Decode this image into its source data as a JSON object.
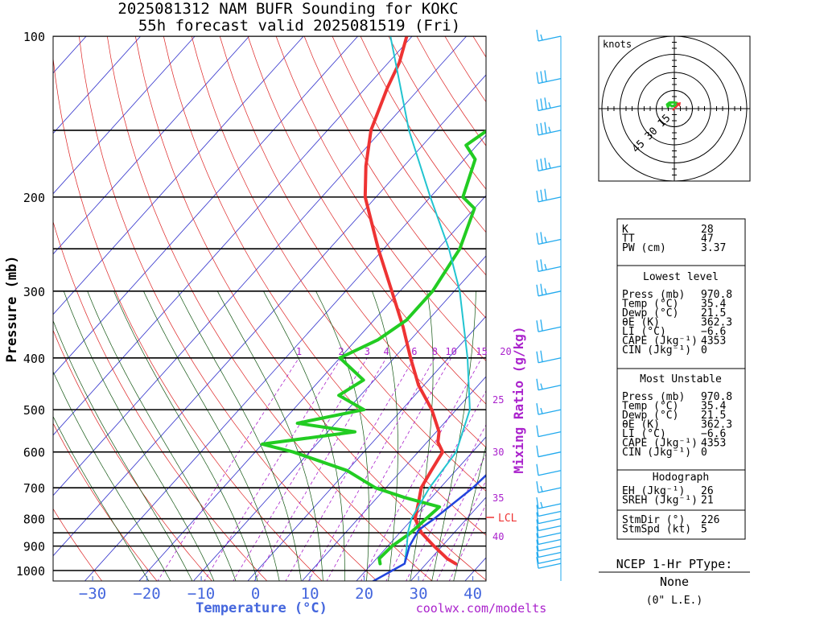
{
  "title": {
    "line1": "2025081312 NAM BUFR Sounding for KOKC",
    "line2": "55h forecast valid 2025081519 (Fri)"
  },
  "colors": {
    "temperature": "#ee3333",
    "dewpoint": "#22cc22",
    "wetbulb": "#22c4d0",
    "parcel": "#2244dd",
    "isotherm": "#3333cc",
    "dry_adiabat": "#dd2222",
    "moist_adiabat": "#115511",
    "mixing_ratio": "#aa22cc",
    "wind_barb": "#22aaee"
  },
  "axes": {
    "y_label": "Pressure (mb)",
    "x_label": "Temperature (°C)",
    "pressure_ticks": [
      "100",
      "200",
      "300",
      "400",
      "500",
      "600",
      "700",
      "800",
      "900",
      "1000"
    ],
    "temperature_ticks": [
      "−30",
      "−20",
      "−10",
      "0",
      "10",
      "20",
      "30",
      "40"
    ],
    "mixing_ratio_label": "Mixing Ratio (g/kg)",
    "mixing_ratio_top_ticks": [
      "1",
      "2",
      "3",
      "4",
      "6",
      "8",
      "10",
      "15",
      "20"
    ],
    "mixing_ratio_side_ticks": [
      "25",
      "30",
      "35",
      "40"
    ],
    "lcl_label": "LCL"
  },
  "chart_data": {
    "type": "line",
    "title": "2025081312 NAM BUFR Sounding for KOKC 55h forecast valid 2025081519 (Fri)",
    "xlabel": "Temperature (°C)",
    "ylabel": "Pressure (mb)",
    "y_scale": "log",
    "ylim": [
      1050,
      100
    ],
    "xlim": [
      -40,
      40
    ],
    "series": [
      {
        "name": "temperature",
        "points": [
          [
            970.8,
            35.4
          ],
          [
            950,
            33
          ],
          [
            900,
            28.5
          ],
          [
            850,
            24
          ],
          [
            800,
            20.5
          ],
          [
            750,
            18.6
          ],
          [
            700,
            16.5
          ],
          [
            650,
            15.5
          ],
          [
            600,
            14.5
          ],
          [
            575,
            12
          ],
          [
            550,
            10.5
          ],
          [
            500,
            5.5
          ],
          [
            450,
            -1
          ],
          [
            400,
            -7
          ],
          [
            350,
            -13.5
          ],
          [
            300,
            -21.5
          ],
          [
            250,
            -31
          ],
          [
            200,
            -42
          ],
          [
            175,
            -47
          ],
          [
            150,
            -52
          ],
          [
            125,
            -56
          ],
          [
            112,
            -58
          ],
          [
            100,
            -61
          ]
        ]
      },
      {
        "name": "dewpoint",
        "points": [
          [
            970.8,
            21.5
          ],
          [
            950,
            20.5
          ],
          [
            900,
            20.8
          ],
          [
            850,
            22
          ],
          [
            800,
            22.5
          ],
          [
            760,
            23
          ],
          [
            730,
            15
          ],
          [
            700,
            8
          ],
          [
            650,
            0
          ],
          [
            600,
            -13
          ],
          [
            580,
            -20
          ],
          [
            550,
            -5
          ],
          [
            530,
            -17
          ],
          [
            500,
            -7
          ],
          [
            470,
            -14
          ],
          [
            440,
            -12
          ],
          [
            400,
            -20
          ],
          [
            370,
            -16
          ],
          [
            340,
            -14
          ],
          [
            300,
            -14
          ],
          [
            250,
            -16
          ],
          [
            210,
            -20
          ],
          [
            200,
            -24
          ],
          [
            170,
            -28
          ],
          [
            160,
            -32
          ],
          [
            140,
            -29
          ],
          [
            120,
            -25
          ]
        ]
      },
      {
        "name": "wetbulb",
        "points": [
          [
            970.8,
            26
          ],
          [
            900,
            23.5
          ],
          [
            850,
            21.5
          ],
          [
            800,
            19.8
          ],
          [
            700,
            18
          ],
          [
            600,
            17
          ],
          [
            500,
            12.5
          ],
          [
            400,
            3.5
          ],
          [
            300,
            -9
          ],
          [
            250,
            -18
          ],
          [
            200,
            -30
          ],
          [
            150,
            -45
          ],
          [
            100,
            -64
          ]
        ]
      },
      {
        "name": "parcel",
        "points": [
          [
            1050,
            23
          ],
          [
            970.8,
            26
          ],
          [
            900,
            24
          ],
          [
            840,
            23
          ],
          [
            800,
            24
          ],
          [
            700,
            26
          ],
          [
            600,
            27
          ],
          [
            500,
            30
          ],
          [
            400,
            32
          ],
          [
            300,
            35
          ],
          [
            280,
            36
          ]
        ]
      }
    ],
    "wind_barbs_kt": [
      [
        970,
        10
      ],
      [
        950,
        10
      ],
      [
        925,
        10
      ],
      [
        900,
        10
      ],
      [
        875,
        10
      ],
      [
        850,
        10
      ],
      [
        825,
        10
      ],
      [
        800,
        10
      ],
      [
        775,
        10
      ],
      [
        750,
        15
      ],
      [
        700,
        15
      ],
      [
        650,
        10
      ],
      [
        600,
        10
      ],
      [
        550,
        10
      ],
      [
        500,
        15
      ],
      [
        450,
        15
      ],
      [
        400,
        20
      ],
      [
        350,
        20
      ],
      [
        300,
        25
      ],
      [
        270,
        25
      ],
      [
        240,
        25
      ],
      [
        200,
        30
      ],
      [
        175,
        35
      ],
      [
        150,
        35
      ],
      [
        135,
        35
      ],
      [
        120,
        30
      ],
      [
        100,
        15
      ]
    ],
    "lcl_pressure": 800,
    "hodograph": {
      "rings_kt": [
        "15",
        "30",
        "45"
      ],
      "units": "knots",
      "trace_uv": [
        [
          -5,
          0.8
        ],
        [
          -6,
          3.5
        ],
        [
          -4,
          5
        ],
        [
          -1,
          5.2
        ],
        [
          2,
          4.8
        ],
        [
          3,
          3.5
        ],
        [
          1,
          2.8
        ],
        [
          -2,
          2
        ],
        [
          -4,
          3.5
        ],
        [
          -5,
          2
        ]
      ]
    }
  },
  "indices": {
    "summary": [
      {
        "label": "K",
        "value": "28"
      },
      {
        "label": "TT",
        "value": "47"
      },
      {
        "label": "PW (cm)",
        "value": "3.37"
      }
    ],
    "lowest_header": "Lowest level",
    "lowest": [
      {
        "label": "Press (mb)",
        "value": "970.8"
      },
      {
        "label": "Temp (°C)",
        "value": "35.4"
      },
      {
        "label": "Dewp (°C)",
        "value": "21.5"
      },
      {
        "label": "θE (K)",
        "value": "362.3"
      },
      {
        "label": "LI (°C)",
        "value": "−6.6"
      },
      {
        "label": "CAPE (Jkg⁻¹)",
        "value": "4353"
      },
      {
        "label": "CIN (Jkg⁻¹)",
        "value": "0"
      }
    ],
    "unstable_header": "Most Unstable",
    "unstable": [
      {
        "label": "Press (mb)",
        "value": "970.8"
      },
      {
        "label": "Temp (°C)",
        "value": "35.4"
      },
      {
        "label": "Dewp (°C)",
        "value": "21.5"
      },
      {
        "label": "θE (K)",
        "value": "362.3"
      },
      {
        "label": "LI (°C)",
        "value": "−6.6"
      },
      {
        "label": "CAPE (Jkg⁻¹)",
        "value": "4353"
      },
      {
        "label": "CIN (Jkg⁻¹)",
        "value": "0"
      }
    ],
    "hodo_header": "Hodograph",
    "hodo": [
      {
        "label": "EH (Jkg⁻¹)",
        "value": "26"
      },
      {
        "label": "SREH (Jkg⁻¹)",
        "value": "21"
      }
    ],
    "storm": [
      {
        "label": "StmDir (°)",
        "value": "226"
      },
      {
        "label": "StmSpd (kt)",
        "value": "5"
      }
    ]
  },
  "ptype": {
    "title": "NCEP 1-Hr PType:",
    "value": "None",
    "note": "(0\" L.E.)"
  },
  "footer": {
    "credit": "coolwx.com/modelts"
  }
}
